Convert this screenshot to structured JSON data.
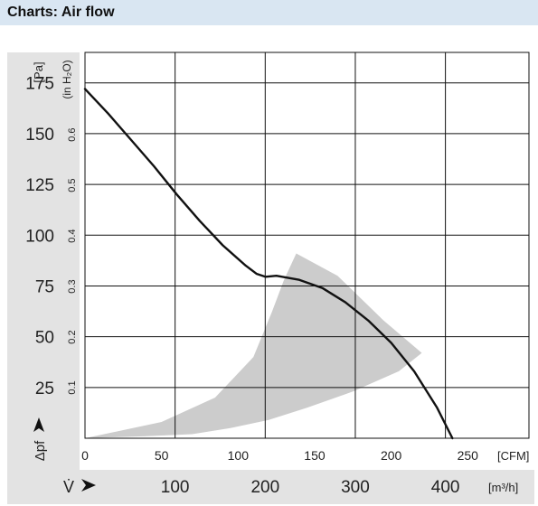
{
  "header": {
    "title": "Charts: Air flow"
  },
  "colors": {
    "header_bg": "#d9e6f2",
    "panel_bg": "#e3e3e3",
    "grid": "#111111",
    "curve": "#111111",
    "band": "#cccccc"
  },
  "chart_data": {
    "type": "line",
    "title": "",
    "y_axis_primary": {
      "label": "Δpf",
      "unit": "[Pa]",
      "range": [
        0,
        190
      ],
      "ticks": [
        25,
        50,
        75,
        100,
        125,
        150,
        175
      ],
      "tick_labels": [
        "25",
        "50",
        "75",
        "100",
        "125",
        "150",
        "175"
      ]
    },
    "y_axis_secondary": {
      "unit": "(in H₂O)",
      "ticks": [
        0.1,
        0.2,
        0.3,
        0.4,
        0.5,
        0.6
      ],
      "tick_labels": [
        "0.1",
        "0.2",
        "0.3",
        "0.4",
        "0.5",
        "0.6"
      ]
    },
    "x_axis_primary": {
      "unit": "[CFM]",
      "range": [
        0,
        290
      ],
      "ticks": [
        0,
        50,
        100,
        150,
        200,
        250
      ],
      "tick_labels": [
        "0",
        "50",
        "100",
        "150",
        "200",
        "250"
      ]
    },
    "x_axis_secondary": {
      "label": "V̇",
      "unit": "[m³/h]",
      "ticks": [
        100,
        200,
        300,
        400
      ],
      "tick_labels": [
        "100",
        "200",
        "300",
        "400"
      ]
    },
    "grid": true,
    "series": [
      {
        "x": [
          0,
          15,
          30,
          45,
          60,
          75,
          90,
          105,
          112,
          118,
          125,
          140,
          155,
          170,
          185,
          200,
          215,
          230,
          240
        ],
        "y": [
          172,
          160,
          147,
          134,
          120,
          107,
          95,
          85,
          81,
          79.5,
          80,
          78,
          74,
          67,
          58,
          47,
          33,
          15,
          0
        ]
      }
    ],
    "operating_range": {
      "x": [
        0,
        50,
        85,
        110,
        122,
        130,
        138,
        165,
        195,
        220,
        205,
        175,
        145,
        120,
        95,
        70,
        40,
        0
      ],
      "y": [
        0,
        8,
        20,
        40,
        62,
        78,
        91,
        80,
        58,
        42,
        33,
        23,
        15,
        9,
        5,
        2,
        1,
        0
      ]
    }
  }
}
